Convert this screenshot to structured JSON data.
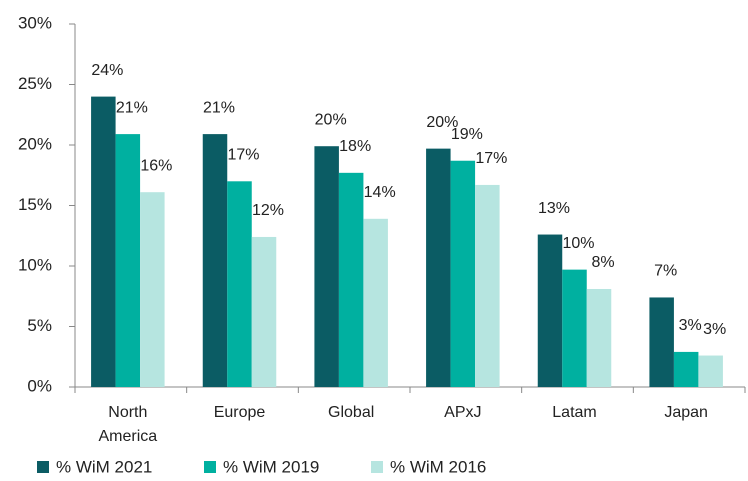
{
  "chart_data": {
    "type": "bar",
    "categories": [
      "North America",
      "Europe",
      "Global",
      "APxJ",
      "Latam",
      "Japan"
    ],
    "series": [
      {
        "name": "% WiM 2021",
        "color": "#0b5c64",
        "values": [
          24,
          20.9,
          19.9,
          19.7,
          12.6,
          7.4
        ],
        "value_labels": [
          "24%",
          "21%",
          "20%",
          "20%",
          "13%",
          "7%"
        ]
      },
      {
        "name": "% WiM 2019",
        "color": "#00b0a0",
        "values": [
          20.9,
          17.0,
          17.7,
          18.7,
          9.7,
          2.9
        ],
        "value_labels": [
          "21%",
          "17%",
          "18%",
          "19%",
          "10%",
          "3%"
        ]
      },
      {
        "name": "% WiM 2016",
        "color": "#b6e5e0",
        "values": [
          16.1,
          12.4,
          13.9,
          16.7,
          8.1,
          2.6
        ],
        "value_labels": [
          "16%",
          "12%",
          "14%",
          "17%",
          "8%",
          "3%"
        ]
      }
    ],
    "ylim": [
      0,
      30
    ],
    "yticks": [
      {
        "value": 0,
        "label": "0%"
      },
      {
        "value": 5,
        "label": "5%"
      },
      {
        "value": 10,
        "label": "10%"
      },
      {
        "value": 15,
        "label": "15%"
      },
      {
        "value": 20,
        "label": "20%"
      },
      {
        "value": 25,
        "label": "25%"
      },
      {
        "value": 30,
        "label": "30%"
      }
    ],
    "legend": "bottom"
  }
}
